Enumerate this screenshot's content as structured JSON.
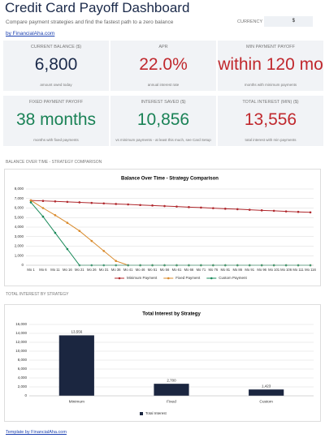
{
  "header": {
    "title": "Credit Card Payoff Dashboard",
    "subtitle": "Compare payment strategies and find the fastest path to a zero balance",
    "currency_label": "CURRENCY",
    "currency_value": "$",
    "link": "by FinancialAha.com"
  },
  "cards": [
    {
      "label": "CURRENT BALANCE ($)",
      "value": "6,800",
      "note": "amount owed today",
      "color": "#1b2a4a"
    },
    {
      "label": "APR",
      "value": "22.0%",
      "note": "annual interest rate",
      "color": "#c0282d"
    },
    {
      "label": "MIN PAYMENT PAYOFF",
      "value": "within 120 mo",
      "note": "months with minimum payments",
      "color": "#c0282d"
    },
    {
      "label": "FIXED PAYMENT PAYOFF",
      "value": "38 months",
      "note": "months with fixed payments",
      "color": "#1a8256"
    },
    {
      "label": "INTEREST SAVED ($)",
      "value": "10,856",
      "note": "vs minimum payments - at least this much, see Card Setup",
      "color": "#1a8256"
    },
    {
      "label": "TOTAL INTEREST (MIN) ($)",
      "value": "13,556",
      "note": "total interest with min payments",
      "color": "#c0282d"
    }
  ],
  "sections": [
    "BALANCE OVER TIME - STRATEGY COMPARISON",
    "TOTAL INTEREST BY STRATEGY"
  ],
  "footer": "Template by FinancialAha.com",
  "chart_data": [
    {
      "type": "line",
      "title": "Balance Over Time - Strategy Comparison",
      "categories": [
        "Mo 1",
        "Mo 6",
        "Mo 11",
        "Mo 16",
        "Mo 21",
        "Mo 26",
        "Mo 31",
        "Mo 36",
        "Mo 41",
        "Mo 46",
        "Mo 51",
        "Mo 56",
        "Mo 61",
        "Mo 66",
        "Mo 71",
        "Mo 76",
        "Mo 81",
        "Mo 86",
        "Mo 91",
        "Mo 96",
        "Mo 101",
        "Mo 106",
        "Mo 111",
        "Mo 116"
      ],
      "series": [
        {
          "name": "Minimum Payment",
          "color": "#b0282d",
          "values": [
            6800,
            6750,
            6700,
            6650,
            6600,
            6540,
            6490,
            6430,
            6380,
            6320,
            6270,
            6210,
            6160,
            6100,
            6050,
            5990,
            5930,
            5880,
            5820,
            5760,
            5710,
            5650,
            5600,
            5550
          ]
        },
        {
          "name": "Fixed Payment",
          "color": "#d98a2b",
          "values": [
            6800,
            6000,
            5250,
            4450,
            3600,
            2550,
            1500,
            450,
            0,
            0,
            0,
            0,
            0,
            0,
            0,
            0,
            0,
            0,
            0,
            0,
            0,
            0,
            0,
            0
          ]
        },
        {
          "name": "Custom Payment",
          "color": "#1a8a5a",
          "values": [
            6600,
            5100,
            3400,
            1700,
            0,
            0,
            0,
            0,
            0,
            0,
            0,
            0,
            0,
            0,
            0,
            0,
            0,
            0,
            0,
            0,
            0,
            0,
            0,
            0
          ]
        }
      ],
      "ylim": [
        0,
        8000
      ],
      "yticks": [
        0,
        {
          "value": 1000,
          "label": "1,000"
        },
        {
          "value": 2000,
          "label": "2,000"
        },
        {
          "value": 3000,
          "label": "3,000"
        },
        {
          "value": 4000,
          "label": "4,000"
        },
        {
          "value": 5000,
          "label": "5,000"
        },
        {
          "value": 6000,
          "label": "6,000"
        },
        {
          "value": 7000,
          "label": "7,000"
        },
        {
          "value": 8000,
          "label": "8,000"
        }
      ],
      "grid": true,
      "legend": "bottom"
    },
    {
      "type": "bar",
      "title": "Total Interest by Strategy",
      "categories": [
        "Minimum",
        "Fixed",
        "Custom"
      ],
      "series": [
        {
          "name": "Total Interest",
          "color": "#1b2640",
          "values": [
            13556,
            2700,
            1423
          ],
          "value_labels": [
            "13,556",
            "2,700",
            "1,423"
          ]
        }
      ],
      "ylim": [
        0,
        16000
      ],
      "yticks": [
        0,
        {
          "value": 2000,
          "label": "2,000"
        },
        {
          "value": 4000,
          "label": "4,000"
        },
        {
          "value": 6000,
          "label": "6,000"
        },
        {
          "value": 8000,
          "label": "8,000"
        },
        {
          "value": 10000,
          "label": "10,000"
        },
        {
          "value": 12000,
          "label": "12,000"
        },
        {
          "value": 14000,
          "label": "14,000"
        },
        {
          "value": 16000,
          "label": "16,000"
        }
      ],
      "grid": true,
      "legend": "bottom"
    }
  ]
}
